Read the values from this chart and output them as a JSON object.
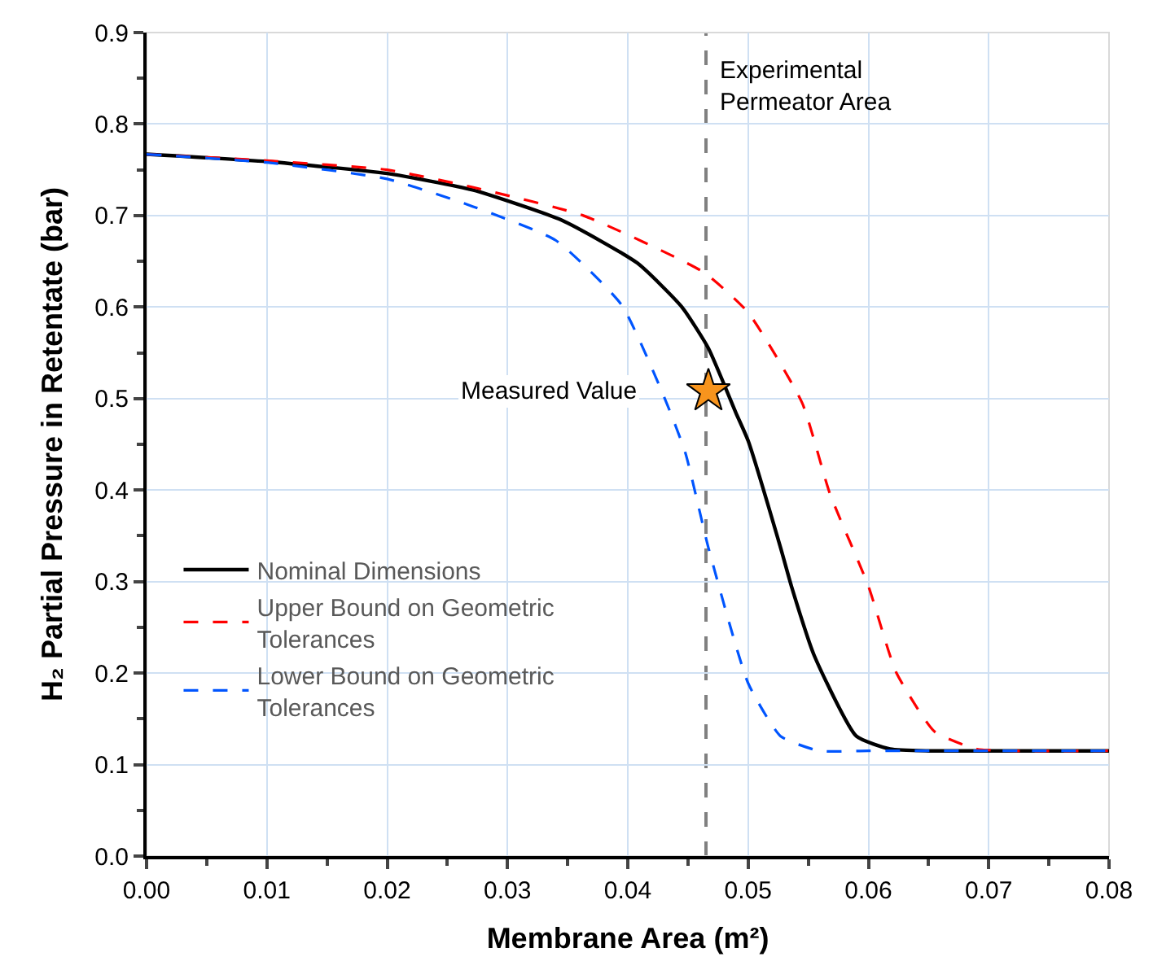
{
  "chart_data": {
    "type": "line",
    "xlabel": "Membrane Area (m²)",
    "ylabel": "H₂ Partial Pressure in Retentate (bar)",
    "xlim": [
      0,
      0.08
    ],
    "xticks": [
      {
        "value": 0,
        "label": "0.00"
      },
      {
        "value": 0.01,
        "label": "0.01"
      },
      {
        "value": 0.02,
        "label": "0.02"
      },
      {
        "value": 0.03,
        "label": "0.03"
      },
      {
        "value": 0.04,
        "label": "0.04"
      },
      {
        "value": 0.05,
        "label": "0.05"
      },
      {
        "value": 0.06,
        "label": "0.06"
      },
      {
        "value": 0.07,
        "label": "0.07"
      },
      {
        "value": 0.08,
        "label": "0.08"
      }
    ],
    "ylim": [
      0,
      0.9
    ],
    "yticks": [
      {
        "value": 0,
        "label": "0.0"
      },
      {
        "value": 0.1,
        "label": "0.1"
      },
      {
        "value": 0.2,
        "label": "0.2"
      },
      {
        "value": 0.3,
        "label": "0.3"
      },
      {
        "value": 0.4,
        "label": "0.4"
      },
      {
        "value": 0.5,
        "label": "0.5"
      },
      {
        "value": 0.6,
        "label": "0.6"
      },
      {
        "value": 0.7,
        "label": "0.7"
      },
      {
        "value": 0.8,
        "label": "0.8"
      },
      {
        "value": 0.9,
        "label": "0.9"
      }
    ],
    "grid": true,
    "legend": "left",
    "marker": "none",
    "series": [
      {
        "name": "Nominal Dimensions",
        "color": "#000000",
        "line_style": "solid",
        "x": [
          0,
          0.01,
          0.02,
          0.0271,
          0.0345,
          0.0408,
          0.0445,
          0.0467,
          0.049,
          0.05,
          0.0527,
          0.0536,
          0.0555,
          0.059,
          0.0618,
          0.065,
          0.07,
          0.08
        ],
        "values": [
          0.767,
          0.759,
          0.746,
          0.728,
          0.695,
          0.648,
          0.6,
          0.555,
          0.484,
          0.454,
          0.337,
          0.295,
          0.219,
          0.131,
          0.117,
          0.115,
          0.115,
          0.115
        ]
      },
      {
        "name": "Upper Bound on Geometric Tolerances",
        "color": "#ff0000",
        "line_style": "dashed",
        "x": [
          0,
          0.01,
          0.02,
          0.0271,
          0.0363,
          0.0463,
          0.05,
          0.0545,
          0.0568,
          0.06,
          0.0623,
          0.0655,
          0.069,
          0.072,
          0.08
        ],
        "values": [
          0.767,
          0.76,
          0.75,
          0.731,
          0.7,
          0.638,
          0.594,
          0.495,
          0.396,
          0.295,
          0.201,
          0.136,
          0.117,
          0.115,
          0.115
        ]
      },
      {
        "name": "Lower Bound on Geometric Tolerances",
        "color": "#0055ff",
        "line_style": "dashed",
        "x": [
          0,
          0.01,
          0.02,
          0.0271,
          0.034,
          0.0395,
          0.0432,
          0.0448,
          0.0467,
          0.05,
          0.0527,
          0.0559,
          0.06,
          0.08
        ],
        "values": [
          0.767,
          0.758,
          0.74,
          0.71,
          0.673,
          0.602,
          0.496,
          0.44,
          0.337,
          0.189,
          0.131,
          0.115,
          0.115,
          0.115
        ]
      },
      {
        "type": "scatter",
        "marker": "star",
        "color": "#f7941d",
        "x": [
          0.0467
        ],
        "values": [
          0.508
        ]
      }
    ],
    "ref_lines": [
      {
        "axis": "x",
        "value": 0.0465,
        "label": "Experimental\nPermeator Area",
        "color": "#808080",
        "line_style": "dashed"
      }
    ],
    "annotations": [
      {
        "text": "Measured Value",
        "x": 0.0467,
        "y": 0.508
      }
    ]
  }
}
